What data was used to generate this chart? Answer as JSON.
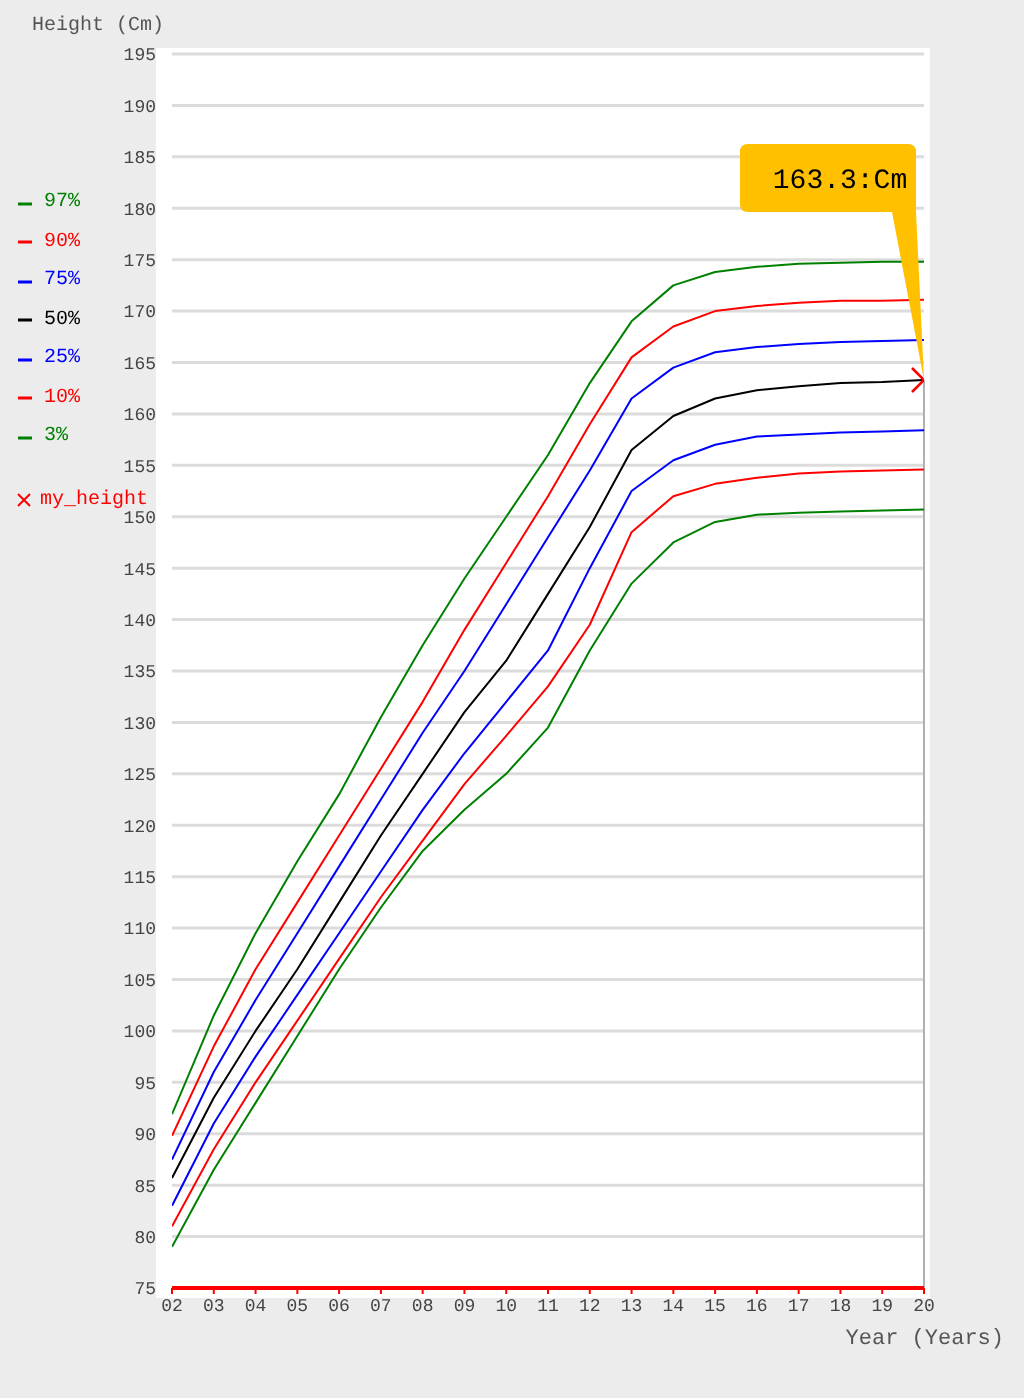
{
  "chart_data": {
    "type": "line",
    "xlabel": "Year (Years)",
    "ylabel": "Height (Cm)",
    "x": [
      2,
      3,
      4,
      5,
      6,
      7,
      8,
      9,
      10,
      11,
      12,
      13,
      14,
      15,
      16,
      17,
      18,
      19,
      20
    ],
    "xlim": [
      2,
      20
    ],
    "xticks": [
      {
        "value": 2,
        "label": "02"
      },
      {
        "value": 3,
        "label": "03"
      },
      {
        "value": 4,
        "label": "04"
      },
      {
        "value": 5,
        "label": "05"
      },
      {
        "value": 6,
        "label": "06"
      },
      {
        "value": 7,
        "label": "07"
      },
      {
        "value": 8,
        "label": "08"
      },
      {
        "value": 9,
        "label": "09"
      },
      10,
      11,
      12,
      13,
      14,
      15,
      16,
      17,
      18,
      19,
      20
    ],
    "ylim": [
      75,
      195
    ],
    "yticks": [
      75,
      80,
      85,
      90,
      95,
      100,
      105,
      110,
      115,
      120,
      125,
      130,
      135,
      140,
      145,
      150,
      155,
      160,
      165,
      170,
      175,
      180,
      185,
      190,
      195
    ],
    "grid": "y",
    "legend": "left",
    "marker": "none",
    "line_style": "solid",
    "series": [
      {
        "name": "97%",
        "color": "#008000",
        "values": [
          91.9,
          101.5,
          109.5,
          116.5,
          123,
          130.5,
          137.5,
          144,
          150,
          156,
          163,
          169,
          172.5,
          173.8,
          174.3,
          174.6,
          174.7,
          174.8,
          174.8
        ]
      },
      {
        "name": "90%",
        "color": "#ff0000",
        "values": [
          89.8,
          98.5,
          106,
          112.5,
          119,
          125.5,
          132,
          139,
          145.5,
          152,
          159,
          165.5,
          168.5,
          170,
          170.5,
          170.8,
          171,
          171,
          171.1
        ]
      },
      {
        "name": "75%",
        "color": "#0000ff",
        "values": [
          87.5,
          96,
          103,
          109.5,
          116,
          122.5,
          129,
          135,
          141.5,
          148,
          154.5,
          161.5,
          164.5,
          166,
          166.5,
          166.8,
          167,
          167.1,
          167.2
        ]
      },
      {
        "name": "50%",
        "color": "#000000",
        "values": [
          85.7,
          93.5,
          100,
          106,
          112.5,
          119,
          125,
          131,
          136,
          142.5,
          149,
          156.5,
          159.8,
          161.5,
          162.3,
          162.7,
          163,
          163.1,
          163.3
        ]
      },
      {
        "name": "25%",
        "color": "#0000ff",
        "values": [
          83,
          91,
          97.5,
          103.5,
          109.5,
          115.5,
          121.5,
          127,
          132,
          137,
          145,
          152.5,
          155.5,
          157,
          157.8,
          158,
          158.2,
          158.3,
          158.4
        ]
      },
      {
        "name": "10%",
        "color": "#ff0000",
        "values": [
          81,
          88.5,
          95,
          101,
          107,
          113,
          118.5,
          124,
          128.7,
          133.5,
          139.5,
          148.5,
          152,
          153.2,
          153.8,
          154.2,
          154.4,
          154.5,
          154.6
        ]
      },
      {
        "name": "3%",
        "color": "#008000",
        "values": [
          79,
          86.5,
          93,
          99.5,
          106,
          112,
          117.5,
          121.5,
          125,
          129.5,
          137,
          143.5,
          147.5,
          149.5,
          150.2,
          150.4,
          150.5,
          150.6,
          150.7
        ]
      },
      {
        "name": "my_height",
        "type": "scatter",
        "marker": "cross",
        "color": "#ff0000",
        "x": [
          20
        ],
        "values": [
          163.3
        ]
      }
    ],
    "ref_lines": [
      {
        "axis": "x",
        "value": 20,
        "color": "#b0b0b0"
      }
    ],
    "annotations": [
      "163.3:Cm"
    ]
  }
}
